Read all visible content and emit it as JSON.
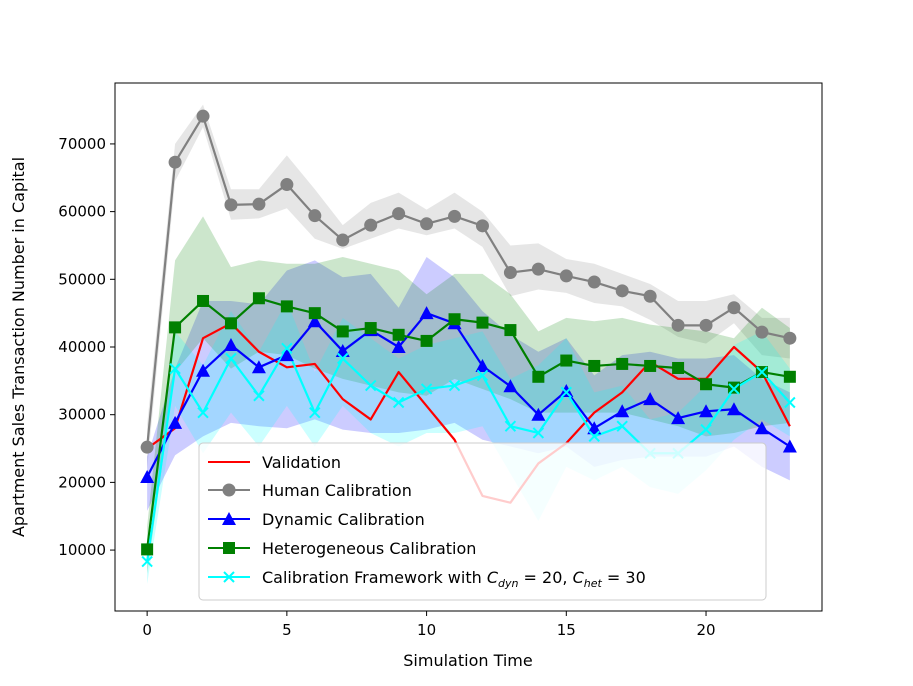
{
  "chart_data": {
    "type": "line",
    "xlabel": "Simulation Time",
    "ylabel": "Apartment Sales Transaction Number in Capital",
    "xlim": [
      -1.15,
      24.15
    ],
    "ylim": [
      1000,
      79000
    ],
    "xticks": [
      0,
      5,
      10,
      15,
      20
    ],
    "yticks": [
      10000,
      20000,
      30000,
      40000,
      50000,
      60000,
      70000
    ],
    "legend_position": "lower-center",
    "x": [
      0,
      1,
      2,
      3,
      4,
      5,
      6,
      7,
      8,
      9,
      10,
      11,
      12,
      13,
      14,
      15,
      16,
      17,
      18,
      19,
      20,
      21,
      22,
      23
    ],
    "series": [
      {
        "name": "Validation",
        "color": "#ff0000",
        "marker": "none",
        "values": [
          25000,
          28000,
          41300,
          43500,
          39300,
          37000,
          37500,
          32300,
          29300,
          36300,
          31300,
          26300,
          18000,
          17000,
          22800,
          25800,
          30300,
          33300,
          37800,
          35300,
          35300,
          40000,
          36300,
          28300
        ]
      },
      {
        "name": "Human Calibration",
        "color": "#808080",
        "marker": "circle",
        "values": [
          25200,
          67300,
          74100,
          61000,
          61100,
          64000,
          59400,
          55800,
          58000,
          59700,
          58200,
          59300,
          57900,
          51000,
          51500,
          50500,
          49600,
          48300,
          47500,
          43200,
          43200,
          45800,
          42200,
          41300
        ],
        "band_low": [
          22000,
          64500,
          72500,
          58800,
          59000,
          60500,
          56000,
          54500,
          56000,
          57500,
          56500,
          57500,
          54800,
          47500,
          48500,
          48000,
          46500,
          46000,
          44000,
          41500,
          40500,
          43500,
          38800,
          38300
        ],
        "band_high": [
          28500,
          70000,
          75800,
          63300,
          63300,
          68300,
          63300,
          58000,
          61300,
          62800,
          60300,
          62800,
          60000,
          55000,
          55300,
          53000,
          52300,
          50800,
          49300,
          46800,
          46800,
          47800,
          44300,
          44300
        ]
      },
      {
        "name": "Dynamic Calibration",
        "color": "#0000ff",
        "marker": "triangle",
        "values": [
          20800,
          28800,
          36500,
          40300,
          37000,
          38800,
          43800,
          39400,
          42500,
          40000,
          45000,
          43500,
          37200,
          34200,
          30000,
          33500,
          28000,
          30500,
          32300,
          29500,
          30500,
          30800,
          28000,
          25300
        ],
        "band_low": [
          15800,
          24000,
          26800,
          28800,
          28300,
          28000,
          29300,
          27800,
          27300,
          27300,
          27800,
          28800,
          26300,
          25300,
          24300,
          25300,
          22300,
          23300,
          23800,
          23800,
          23800,
          25300,
          22300,
          20300
        ],
        "band_high": [
          23800,
          36800,
          46800,
          46800,
          46300,
          51300,
          52800,
          50300,
          50800,
          45800,
          53300,
          50300,
          45300,
          41800,
          39300,
          41300,
          35800,
          38800,
          39300,
          38300,
          38300,
          38800,
          35300,
          33300
        ]
      },
      {
        "name": "Heterogeneous Calibration",
        "color": "#008000",
        "marker": "square",
        "values": [
          10100,
          42900,
          46800,
          43500,
          47200,
          46000,
          45000,
          42300,
          42800,
          41800,
          40900,
          44100,
          43600,
          42500,
          35600,
          38000,
          37200,
          37500,
          37200,
          36900,
          34500,
          34000,
          36300,
          35600
        ],
        "band_low": [
          6500,
          36300,
          41300,
          36800,
          39300,
          38800,
          36800,
          35300,
          34300,
          33300,
          32800,
          35300,
          33800,
          32300,
          30300,
          30300,
          30300,
          30300,
          29300,
          28300,
          26800,
          27300,
          28300,
          28800
        ],
        "band_high": [
          13500,
          52800,
          59300,
          51800,
          52800,
          52300,
          52300,
          53300,
          52300,
          51300,
          47800,
          50800,
          50800,
          47800,
          42300,
          44300,
          43800,
          44300,
          43300,
          42800,
          42300,
          41300,
          45800,
          42800
        ]
      },
      {
        "name": "Calibration Framework with C_dyn = 20, C_het = 30",
        "color": "#00ffff",
        "marker": "x",
        "values": [
          8300,
          36800,
          30300,
          38300,
          32800,
          39800,
          30300,
          38300,
          34300,
          31800,
          33800,
          34300,
          35800,
          28300,
          27300,
          33300,
          26800,
          28300,
          24300,
          24300,
          27800,
          33800,
          36300,
          31800
        ],
        "band_low": [
          5000,
          31300,
          24300,
          30300,
          25300,
          31300,
          25300,
          31300,
          27300,
          25300,
          27300,
          27300,
          28300,
          21300,
          14300,
          22300,
          20300,
          22300,
          19300,
          18300,
          21800,
          26300,
          29300,
          26800
        ],
        "band_high": [
          11500,
          42300,
          37300,
          45300,
          39300,
          46800,
          36300,
          44300,
          41300,
          38300,
          40300,
          41300,
          42300,
          35300,
          37300,
          41300,
          33300,
          34300,
          29300,
          30300,
          34300,
          40300,
          42300,
          36800
        ]
      }
    ]
  },
  "legend": {
    "validation": "Validation",
    "human": "Human Calibration",
    "dynamic": "Dynamic Calibration",
    "heterogeneous": "Heterogeneous Calibration",
    "framework_prefix": "Calibration Framework with ",
    "framework_c": "C",
    "framework_dyn_sub": "dyn",
    "framework_mid": " = 20, ",
    "framework_het_sub": "het",
    "framework_end": " = 30"
  }
}
